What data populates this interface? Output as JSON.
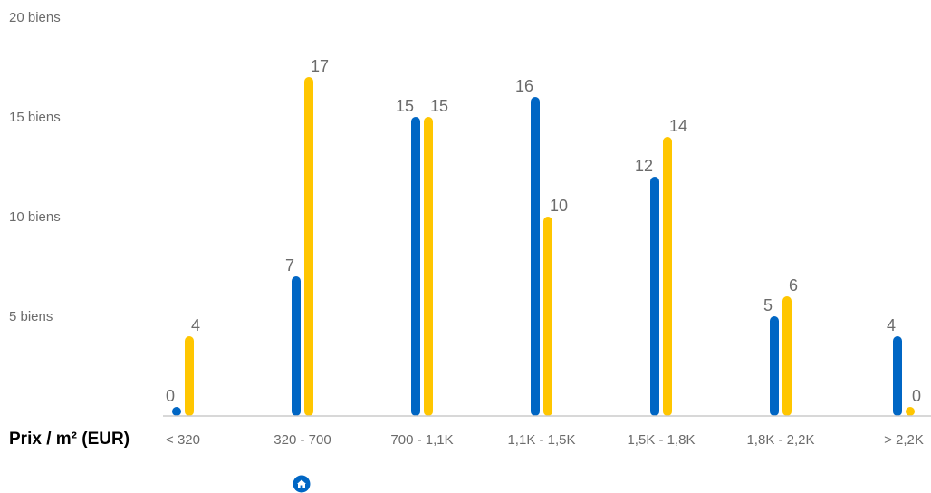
{
  "chart_data": {
    "type": "bar",
    "xlabel": "Prix / m² (EUR)",
    "ylabel": "",
    "ylim": [
      0,
      20
    ],
    "y_tick_labels": [
      "5 biens",
      "10 biens",
      "15 biens",
      "20 biens"
    ],
    "y_tick_values": [
      5,
      10,
      15,
      20
    ],
    "categories": [
      "< 320",
      "320 - 700",
      "700 - 1,1K",
      "1,1K - 1,5K",
      "1,5K - 1,8K",
      "1,8K - 2,2K",
      "> 2,2K"
    ],
    "series": [
      {
        "color": "#0066C4",
        "values": [
          0,
          7,
          15,
          16,
          12,
          5,
          4
        ]
      },
      {
        "color": "#FFC600",
        "values": [
          4,
          17,
          15,
          10,
          14,
          6,
          0
        ]
      }
    ],
    "grid": false,
    "baseline_color": "#cccccc"
  },
  "marker": {
    "icon": "house-pin-icon",
    "color": "#0066C4"
  }
}
